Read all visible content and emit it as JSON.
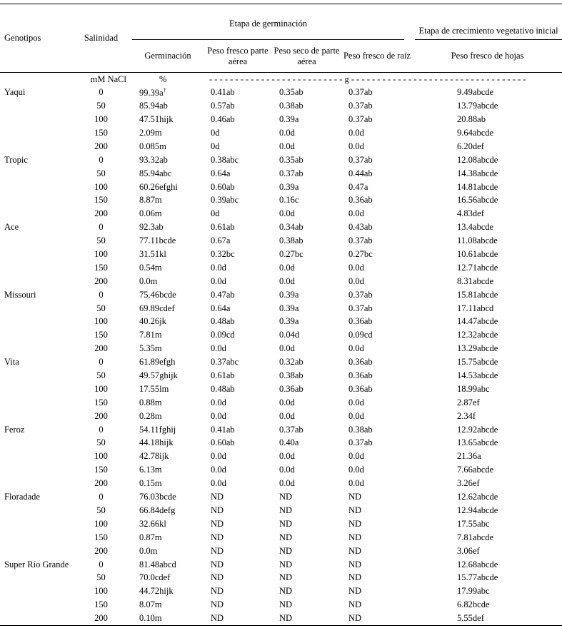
{
  "header": {
    "genotype": "Genotipos",
    "salinity": "Salinidad",
    "group_germination": "Etapa de germinación",
    "group_growth": "Etapa de crecimiento vegetativo inicial",
    "columns": [
      "Germinación",
      "Peso fresco parte aérea",
      "Peso seco de parte aérea",
      "Peso fresco de raíz",
      "Peso fresco de hojas"
    ]
  },
  "units": {
    "salinity": "mM NaCl",
    "germination": "%",
    "mass": "- - - - - - - - - - - - - - - - - - - - - - - - - - g - - - - - - - - - - - - - - - - - - - - - - - - - - - - - - - - - -"
  },
  "table": {
    "groups": [
      {
        "genotype": "Yaqui",
        "rows": [
          [
            "0",
            {
              "text": "99.39a",
              "sup": "†"
            },
            "0.41ab",
            "0.35ab",
            "0.37ab",
            "9.49abcde"
          ],
          [
            "50",
            "85.94ab",
            "0.57ab",
            "0.38ab",
            "0.37ab",
            "13.79abcde"
          ],
          [
            "100",
            "47.51hijk",
            "0.46ab",
            "0.39a",
            "0.37ab",
            "20.88ab"
          ],
          [
            "150",
            "2.09m",
            "0d",
            "0.0d",
            "0.0d",
            "9.64abcde"
          ],
          [
            "200",
            "0.085m",
            "0d",
            "0.0d",
            "0.0d",
            "6.20def"
          ]
        ]
      },
      {
        "genotype": "Tropic",
        "rows": [
          [
            "0",
            "93.32ab",
            "0.38abc",
            "0.35ab",
            "0.37ab",
            "12.08abcde"
          ],
          [
            "50",
            "85.94abc",
            "0.64a",
            "0.37ab",
            "0.44ab",
            "14.38abcde"
          ],
          [
            "100",
            "60.26efghi",
            "0.60ab",
            "0.39a",
            "0.47a",
            "14.81abcde"
          ],
          [
            "150",
            "8.87m",
            "0.39abc",
            "0.16c",
            "0.36ab",
            "16.56abcde"
          ],
          [
            "200",
            "0.06m",
            "0d",
            "0.0d",
            "0.0d",
            "4.83def"
          ]
        ]
      },
      {
        "genotype": "Ace",
        "rows": [
          [
            "0",
            "92.3ab",
            "0.61ab",
            "0.34ab",
            "0.43ab",
            "13.4abcde"
          ],
          [
            "50",
            "77.11bcde",
            "0.67a",
            "0.38ab",
            "0.37ab",
            "11.08abcde"
          ],
          [
            "100",
            "31.51kl",
            "0.32bc",
            "0.27bc",
            "0.27bc",
            "10.61abcde"
          ],
          [
            "150",
            "0.54m",
            "0.0d",
            "0.0d",
            "0.0d",
            "12.71abcde"
          ],
          [
            "200",
            "0.0m",
            "0.0d",
            "0.0d",
            "0.0d",
            "8.31abcde"
          ]
        ]
      },
      {
        "genotype": "Missouri",
        "rows": [
          [
            "0",
            "75.46bcde",
            "0.47ab",
            "0.39a",
            "0.37ab",
            "15.81abcde"
          ],
          [
            "50",
            "69.89cdef",
            "0.64a",
            "0.39a",
            "0.37ab",
            "17.11abcd"
          ],
          [
            "100",
            "40.26jk",
            "0.48ab",
            "0.39a",
            "0.36ab",
            "14.47abcde"
          ],
          [
            "150",
            "7.81m",
            "0.09cd",
            "0.04d",
            "0.09cd",
            "12.32abcde"
          ],
          [
            "200",
            "5.35m",
            "0.0d",
            "0.0d",
            "0.0d",
            "13.29abcde"
          ]
        ]
      },
      {
        "genotype": "Vita",
        "rows": [
          [
            "0",
            "61.89efgh",
            "0.37abc",
            "0.32ab",
            "0.36ab",
            "15.75abcde"
          ],
          [
            "50",
            "49.57ghijk",
            "0.61ab",
            "0.38ab",
            "0.36ab",
            "14.53abcde"
          ],
          [
            "100",
            "17.55lm",
            "0.48ab",
            "0.36ab",
            "0.36ab",
            "18.99abc"
          ],
          [
            "150",
            "0.88m",
            "0.0d",
            "0.0d",
            "0.0d",
            "2.87ef"
          ],
          [
            "200",
            "0.28m",
            "0.0d",
            "0.0d",
            "0.0d",
            "2.34f"
          ]
        ]
      },
      {
        "genotype": "Feroz",
        "rows": [
          [
            "0",
            "54.11fghij",
            "0.41ab",
            "0.37ab",
            "0.38ab",
            "12.92abcde"
          ],
          [
            "50",
            "44.18hijk",
            "0.60ab",
            "0.40a",
            "0.37ab",
            "13.65abcde"
          ],
          [
            "100",
            "42.78ijk",
            "0.0d",
            "0.0d",
            "0.0d",
            "21.36a"
          ],
          [
            "150",
            "6.13m",
            "0.0d",
            "0.0d",
            "0.0d",
            "7.66abcde"
          ],
          [
            "200",
            "0.15m",
            "0.0d",
            "0.0d",
            "0.0d",
            "3.26ef"
          ]
        ]
      },
      {
        "genotype": "Floradade",
        "rows": [
          [
            "0",
            "76.03bcde",
            "ND",
            "ND",
            "ND",
            "12.62abcde"
          ],
          [
            "50",
            "66.84defg",
            "ND",
            "ND",
            "ND",
            "12.94abcde"
          ],
          [
            "100",
            "32.66kl",
            "ND",
            "ND",
            "ND",
            "17.55abc"
          ],
          [
            "150",
            "0.87m",
            "ND",
            "ND",
            "ND",
            "7.81abcde"
          ],
          [
            "200",
            "0.0m",
            "ND",
            "ND",
            "ND",
            "3.06ef"
          ]
        ]
      },
      {
        "genotype": "Super Río Grande",
        "rows": [
          [
            "0",
            "81.48abcd",
            "ND",
            "ND",
            "ND",
            "12.68abcde"
          ],
          [
            "50",
            "70.0cdef",
            "ND",
            "ND",
            "ND",
            "15.77abcde"
          ],
          [
            "100",
            "44.72hijk",
            "ND",
            "ND",
            "ND",
            "17.99abc"
          ],
          [
            "150",
            "8.07m",
            "ND",
            "ND",
            "ND",
            "6.82bcde"
          ],
          [
            "200",
            "0.10m",
            "ND",
            "ND",
            "ND",
            "5.55def"
          ]
        ]
      }
    ]
  }
}
